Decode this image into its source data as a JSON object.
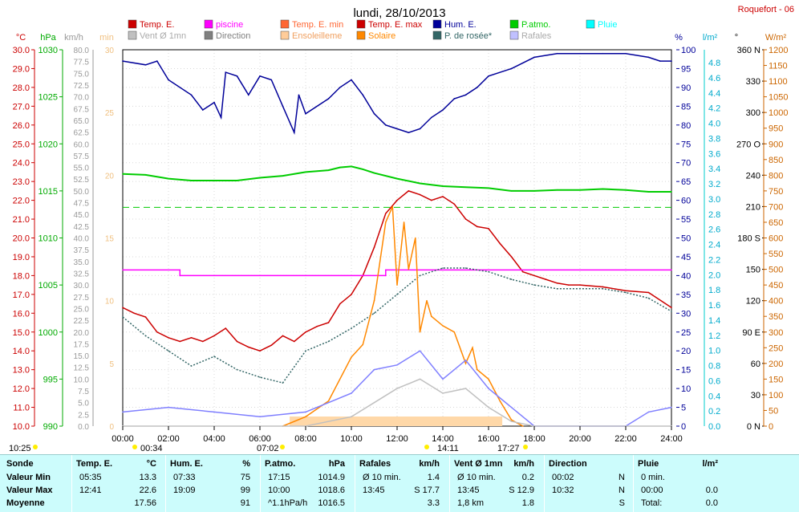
{
  "title": "lundi, 28/10/2013",
  "location": "Roquefort - 06",
  "legend": [
    {
      "label": "Temp. E.",
      "color": "#cc0000"
    },
    {
      "label": "piscine",
      "color": "#ff00ff"
    },
    {
      "label": "Temp. E. min",
      "color": "#ff6633"
    },
    {
      "label": "Temp. E. max",
      "color": "#cc0000"
    },
    {
      "label": "Hum. E.",
      "color": "#000099"
    },
    {
      "label": "P.atmo.",
      "color": "#00cc00"
    },
    {
      "label": "Pluie",
      "color": "#00ffff"
    },
    {
      "label": "Vent Ø 1mn",
      "color": "#c0c0c0"
    },
    {
      "label": "Direction",
      "color": "#808080"
    },
    {
      "label": "Ensoleilleme",
      "color": "#ffcc99"
    },
    {
      "label": "Solaire",
      "color": "#ff8800"
    },
    {
      "label": "P. de rosée*",
      "color": "#336666"
    },
    {
      "label": "Rafales",
      "color": "#c0c0ff"
    }
  ],
  "axis_units": {
    "temp": "°C",
    "press": "hPa",
    "wind": "km/h",
    "minutes": "min",
    "hum": "%",
    "rain": "l/m²",
    "dir": "°",
    "solar": "W/m²"
  },
  "axes": {
    "temp_ticks": [
      "30.0",
      "29.0",
      "28.0",
      "27.0",
      "26.0",
      "25.0",
      "24.0",
      "23.0",
      "22.0",
      "21.0",
      "20.0",
      "19.0",
      "18.0",
      "17.0",
      "16.0",
      "15.0",
      "14.0",
      "13.0",
      "12.0",
      "11.0",
      "10.0"
    ],
    "press_ticks": [
      "1030",
      "1025",
      "1020",
      "1015",
      "1010",
      "1005",
      "1000",
      "995",
      "990"
    ],
    "wind_ticks": [
      "80.0",
      "77.5",
      "75.0",
      "72.5",
      "70.0",
      "67.5",
      "65.0",
      "62.5",
      "60.0",
      "57.5",
      "55.0",
      "52.5",
      "50.0",
      "47.5",
      "45.0",
      "42.5",
      "40.0",
      "37.5",
      "35.0",
      "32.5",
      "30.0",
      "27.5",
      "25.0",
      "22.5",
      "20.0",
      "17.5",
      "15.0",
      "12.5",
      "10.0",
      "7.5",
      "5.0",
      "2.5",
      "0.0"
    ],
    "min_ticks": [
      "30",
      "25",
      "20",
      "15",
      "10",
      "5",
      "0"
    ],
    "hum_ticks": [
      "100",
      "95",
      "90",
      "85",
      "80",
      "75",
      "70",
      "65",
      "60",
      "55",
      "50",
      "45",
      "40",
      "35",
      "30",
      "25",
      "20",
      "15",
      "10",
      "5",
      "0"
    ],
    "rain_ticks": [
      "4.8",
      "4.6",
      "4.4",
      "4.2",
      "4.0",
      "3.8",
      "3.6",
      "3.4",
      "3.2",
      "3.0",
      "2.8",
      "2.6",
      "2.4",
      "2.2",
      "2.0",
      "1.8",
      "1.6",
      "1.4",
      "1.2",
      "1.0",
      "0.8",
      "0.6",
      "0.4",
      "0.2",
      "0.0"
    ],
    "dir_ticks": [
      "360 N",
      "330",
      "300",
      "270 O",
      "240",
      "210",
      "180 S",
      "150",
      "120",
      "90 E",
      "60",
      "30",
      "0 N"
    ],
    "solar_ticks": [
      "1200",
      "1150",
      "1100",
      "1050",
      "1000",
      "950",
      "900",
      "850",
      "800",
      "750",
      "700",
      "650",
      "600",
      "550",
      "500",
      "450",
      "400",
      "350",
      "300",
      "250",
      "200",
      "150",
      "100",
      "50",
      "0"
    ],
    "x_ticks": [
      "00:00",
      "02:00",
      "04:00",
      "06:00",
      "08:00",
      "10:00",
      "12:00",
      "14:00",
      "16:00",
      "18:00",
      "20:00",
      "22:00",
      "24:00"
    ]
  },
  "markers": {
    "sunrise": "07:02",
    "sunset": "17:27",
    "first": "10:25",
    "m1": "00:34",
    "m2": "14:11"
  },
  "chart_data": {
    "type": "line",
    "title": "lundi, 28/10/2013",
    "x_unit": "hour",
    "series": [
      {
        "name": "Temp. E.",
        "unit": "°C",
        "color": "#cc0000",
        "x": [
          0,
          0.5,
          1,
          1.5,
          2,
          2.5,
          3,
          3.5,
          4,
          4.5,
          5,
          5.5,
          6,
          6.5,
          7,
          7.5,
          8,
          8.5,
          9,
          9.5,
          10,
          10.5,
          11,
          11.5,
          12,
          12.5,
          13,
          13.5,
          14,
          14.5,
          15,
          15.5,
          16,
          16.5,
          17,
          17.5,
          18,
          18.5,
          19,
          19.5,
          20,
          21,
          22,
          23,
          24
        ],
        "y": [
          16.3,
          16.0,
          15.8,
          15.0,
          14.7,
          14.5,
          14.7,
          14.5,
          14.8,
          15.2,
          14.5,
          14.2,
          14.0,
          14.3,
          14.8,
          14.5,
          15.0,
          15.3,
          15.5,
          16.5,
          17.0,
          18.0,
          19.5,
          21.3,
          22.0,
          22.5,
          22.3,
          22.0,
          22.2,
          21.8,
          21.0,
          20.6,
          20.5,
          19.7,
          19.0,
          18.2,
          18.0,
          17.8,
          17.6,
          17.5,
          17.5,
          17.4,
          17.2,
          17.1,
          16.3
        ]
      },
      {
        "name": "piscine",
        "unit": "°C",
        "color": "#ff00ff",
        "x": [
          0,
          2.5,
          2.5,
          11.5,
          11.5,
          24
        ],
        "y": [
          18.3,
          18.3,
          18.0,
          18.0,
          18.3,
          18.3
        ]
      },
      {
        "name": "Hum. E.",
        "unit": "%",
        "color": "#000099",
        "x": [
          0,
          1,
          1.5,
          2,
          3,
          3.5,
          4,
          4.3,
          4.5,
          5,
          5.5,
          6,
          6.5,
          7,
          7.5,
          7.7,
          8,
          9,
          9.5,
          10,
          10.5,
          11,
          11.5,
          12,
          12.5,
          13,
          13.5,
          14,
          14.5,
          15,
          15.5,
          16,
          17,
          18,
          19,
          20,
          21,
          22,
          23,
          23.5,
          24
        ],
        "y": [
          97,
          96,
          97,
          92,
          88,
          84,
          86,
          82,
          94,
          93,
          88,
          93,
          92,
          85,
          78,
          88,
          83,
          87,
          90,
          92,
          88,
          83,
          80,
          79,
          78,
          79,
          82,
          84,
          87,
          88,
          90,
          93,
          95,
          98,
          99,
          99,
          99,
          99,
          98,
          97,
          97
        ]
      },
      {
        "name": "P.atmo.",
        "unit": "hPa",
        "color": "#00cc00",
        "x": [
          0,
          1,
          2,
          3,
          4,
          5,
          6,
          7,
          8,
          9,
          9.5,
          10,
          10.5,
          11,
          12,
          13,
          14,
          15,
          16,
          17,
          18,
          19,
          20,
          21,
          22,
          23,
          24
        ],
        "y": [
          1016.8,
          1016.7,
          1016.3,
          1016.1,
          1016.1,
          1016.1,
          1016.4,
          1016.6,
          1017.0,
          1017.2,
          1017.5,
          1017.6,
          1017.3,
          1016.9,
          1016.3,
          1015.8,
          1015.5,
          1015.4,
          1015.3,
          1015.0,
          1015.0,
          1015.1,
          1015.1,
          1015.2,
          1015.1,
          1014.9,
          1014.9
        ]
      },
      {
        "name": "P. de rosée*",
        "unit": "°C",
        "color": "#336666",
        "x": [
          0,
          1,
          2,
          3,
          4,
          5,
          6,
          7,
          8,
          9,
          10,
          11,
          12,
          13,
          14,
          15,
          16,
          17,
          18,
          19,
          20,
          21,
          22,
          23,
          24
        ],
        "y": [
          15.8,
          14.8,
          14.0,
          13.2,
          13.7,
          13.0,
          12.6,
          12.3,
          14.0,
          14.5,
          15.2,
          16.0,
          17.0,
          18.0,
          18.4,
          18.4,
          18.2,
          17.8,
          17.5,
          17.3,
          17.3,
          17.3,
          17.1,
          16.8,
          16.1
        ]
      },
      {
        "name": "Solaire",
        "unit": "W/m²",
        "color": "#ff8800",
        "x": [
          7,
          8,
          9,
          10,
          10.5,
          11,
          11.5,
          11.8,
          12,
          12.3,
          12.5,
          12.8,
          13,
          13.3,
          13.5,
          14,
          14.5,
          15,
          15.3,
          15.5,
          16,
          16.5,
          17,
          17.5
        ],
        "y": [
          0,
          30,
          80,
          220,
          260,
          400,
          650,
          700,
          450,
          650,
          500,
          600,
          300,
          400,
          350,
          320,
          300,
          200,
          250,
          180,
          150,
          80,
          20,
          0
        ]
      },
      {
        "name": "Rafales",
        "unit": "km/h",
        "color": "#8080ff",
        "x": [
          0,
          2,
          4,
          6,
          8,
          10,
          11,
          12,
          13,
          14,
          15,
          16,
          17,
          18,
          20,
          22,
          23,
          24
        ],
        "y": [
          3,
          4,
          3,
          2,
          3,
          7,
          12,
          13,
          16,
          10,
          14,
          8,
          4,
          0,
          0,
          0,
          3,
          4
        ]
      },
      {
        "name": "Vent Ø 1mn",
        "unit": "km/h",
        "color": "#c0c0c0",
        "x": [
          0,
          8,
          10,
          11,
          12,
          13,
          14,
          15,
          16,
          17,
          18,
          24
        ],
        "y": [
          0,
          0,
          2,
          5,
          8,
          10,
          7,
          8,
          4,
          1,
          0,
          0
        ]
      }
    ]
  },
  "stats": {
    "headers": [
      {
        "label": "Sonde",
        "unit": ""
      },
      {
        "label": "Temp. E.",
        "unit": "°C"
      },
      {
        "label": "Hum. E.",
        "unit": "%"
      },
      {
        "label": "P.atmo.",
        "unit": "hPa"
      },
      {
        "label": "Rafales",
        "unit": "km/h"
      },
      {
        "label": "Vent Ø 1mn",
        "unit": "km/h"
      },
      {
        "label": "Direction",
        "unit": ""
      },
      {
        "label": "Pluie",
        "unit": "l/m²"
      }
    ],
    "rows": [
      {
        "label": "Valeur Min",
        "cells": [
          [
            "05:35",
            "13.3"
          ],
          [
            "07:33",
            "75"
          ],
          [
            "17:15",
            "1014.9"
          ],
          [
            "Ø 10 min.",
            "1.4"
          ],
          [
            "Ø 10 min.",
            "0.2"
          ],
          [
            "00:02",
            "N"
          ],
          [
            "0 min.",
            ""
          ]
        ]
      },
      {
        "label": "Valeur Max",
        "cells": [
          [
            "12:41",
            "22.6"
          ],
          [
            "19:09",
            "99"
          ],
          [
            "10:00",
            "1018.6"
          ],
          [
            "13:45",
            "S 17.7"
          ],
          [
            "13:45",
            "S 12.9"
          ],
          [
            "10:32",
            "N"
          ],
          [
            "00:00",
            "0.0"
          ]
        ]
      },
      {
        "label": "Moyenne",
        "cells": [
          [
            "",
            "17.56"
          ],
          [
            "",
            "91"
          ],
          [
            "^1.1hPa/h",
            "1016.5"
          ],
          [
            "",
            "3.3"
          ],
          [
            "1,8 km",
            "1.8"
          ],
          [
            "",
            "S"
          ],
          [
            "Total:",
            "0.0"
          ]
        ]
      }
    ]
  }
}
